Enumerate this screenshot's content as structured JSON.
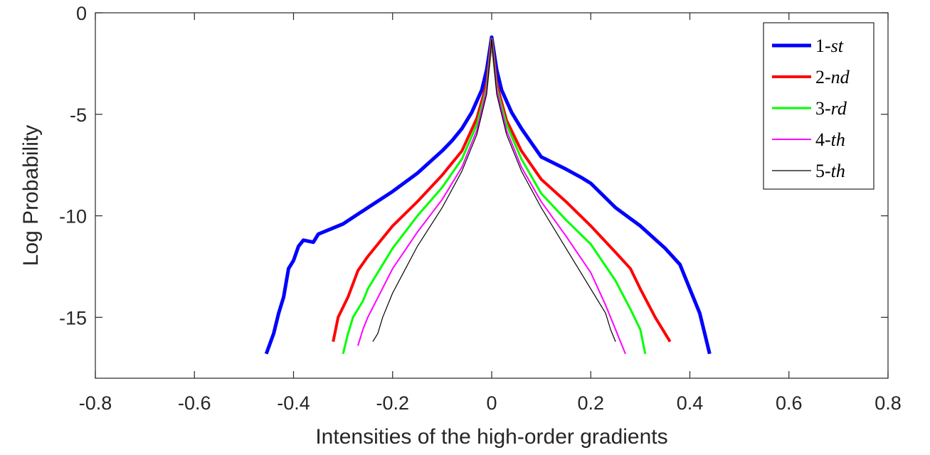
{
  "chart_data": {
    "type": "line",
    "title": "",
    "xlabel": "Intensities of the high-order gradients",
    "ylabel": "Log Probability",
    "xlim": [
      -0.8,
      0.8
    ],
    "ylim": [
      -18,
      0
    ],
    "xticks": [
      -0.8,
      -0.6,
      -0.4,
      -0.2,
      0,
      0.2,
      0.4,
      0.6,
      0.8
    ],
    "xtick_labels": [
      "-0.8",
      "-0.6",
      "-0.4",
      "-0.2",
      "0",
      "0.2",
      "0.4",
      "0.6",
      "0.8"
    ],
    "yticks": [
      0,
      -5,
      -10,
      -15
    ],
    "ytick_labels": [
      "0",
      "-5",
      "-10",
      "-15"
    ],
    "grid": false,
    "legend_position": "top-right",
    "series": [
      {
        "name": "1-st",
        "legend_num": "1-",
        "legend_suffix": "st",
        "color": "#0000ff",
        "width": 5,
        "x": [
          -0.455,
          -0.44,
          -0.43,
          -0.42,
          -0.41,
          -0.4,
          -0.39,
          -0.38,
          -0.36,
          -0.35,
          -0.34,
          -0.3,
          -0.25,
          -0.2,
          -0.15,
          -0.1,
          -0.08,
          -0.06,
          -0.04,
          -0.02,
          -0.01,
          0.0,
          0.01,
          0.02,
          0.04,
          0.06,
          0.08,
          0.1,
          0.15,
          0.18,
          0.2,
          0.25,
          0.3,
          0.35,
          0.38,
          0.4,
          0.42,
          0.43,
          0.44
        ],
        "y": [
          -16.8,
          -15.8,
          -14.8,
          -14.0,
          -12.6,
          -12.2,
          -11.5,
          -11.2,
          -11.3,
          -10.9,
          -10.8,
          -10.4,
          -9.6,
          -8.8,
          -7.9,
          -6.8,
          -6.3,
          -5.7,
          -4.9,
          -3.8,
          -2.8,
          -1.2,
          -2.8,
          -3.8,
          -4.9,
          -5.7,
          -6.4,
          -7.1,
          -7.7,
          -8.1,
          -8.4,
          -9.6,
          -10.5,
          -11.6,
          -12.4,
          -13.6,
          -14.8,
          -15.8,
          -16.8
        ]
      },
      {
        "name": "2-nd",
        "legend_num": "2-",
        "legend_suffix": "nd",
        "color": "#ff0000",
        "width": 4,
        "x": [
          -0.32,
          -0.31,
          -0.3,
          -0.29,
          -0.27,
          -0.25,
          -0.2,
          -0.15,
          -0.1,
          -0.06,
          -0.03,
          -0.01,
          0.0,
          0.01,
          0.03,
          0.06,
          0.1,
          0.15,
          0.2,
          0.25,
          0.28,
          0.3,
          0.33,
          0.36
        ],
        "y": [
          -16.2,
          -15.0,
          -14.5,
          -14.0,
          -12.7,
          -12.0,
          -10.5,
          -9.3,
          -8.0,
          -6.8,
          -5.2,
          -3.5,
          -1.3,
          -3.5,
          -5.3,
          -6.8,
          -8.2,
          -9.3,
          -10.5,
          -11.8,
          -12.6,
          -13.6,
          -15.0,
          -16.2
        ]
      },
      {
        "name": "3-rd",
        "legend_num": "3-",
        "legend_suffix": "rd",
        "color": "#00ff00",
        "width": 3,
        "x": [
          -0.3,
          -0.29,
          -0.28,
          -0.26,
          -0.25,
          -0.2,
          -0.15,
          -0.1,
          -0.06,
          -0.03,
          -0.01,
          0.0,
          0.01,
          0.03,
          0.06,
          0.1,
          0.15,
          0.2,
          0.25,
          0.28,
          0.3,
          0.31
        ],
        "y": [
          -16.8,
          -15.8,
          -15.0,
          -14.2,
          -13.6,
          -11.6,
          -10.0,
          -8.6,
          -7.2,
          -5.5,
          -3.7,
          -1.3,
          -3.7,
          -5.5,
          -7.2,
          -8.9,
          -10.2,
          -11.4,
          -13.2,
          -14.6,
          -15.6,
          -16.8
        ]
      },
      {
        "name": "4-th",
        "legend_num": "4-",
        "legend_suffix": "th",
        "color": "#ff00ff",
        "width": 2,
        "x": [
          -0.27,
          -0.26,
          -0.25,
          -0.2,
          -0.15,
          -0.1,
          -0.06,
          -0.03,
          -0.01,
          0.0,
          0.01,
          0.03,
          0.06,
          0.1,
          0.15,
          0.2,
          0.23,
          0.25,
          0.26,
          0.27
        ],
        "y": [
          -16.4,
          -15.6,
          -15.0,
          -12.6,
          -10.8,
          -9.2,
          -7.6,
          -5.8,
          -3.8,
          -1.3,
          -3.8,
          -5.8,
          -7.6,
          -9.3,
          -11.0,
          -12.8,
          -14.4,
          -15.6,
          -16.2,
          -16.8
        ]
      },
      {
        "name": "5-th",
        "legend_num": "5-",
        "legend_suffix": "th",
        "color": "#000000",
        "width": 1.2,
        "x": [
          -0.24,
          -0.23,
          -0.22,
          -0.2,
          -0.15,
          -0.1,
          -0.06,
          -0.03,
          -0.01,
          0.0,
          0.01,
          0.03,
          0.06,
          0.1,
          0.15,
          0.2,
          0.23,
          0.24,
          0.25
        ],
        "y": [
          -16.2,
          -15.8,
          -15.0,
          -13.8,
          -11.5,
          -9.6,
          -7.8,
          -6.0,
          -4.0,
          -1.3,
          -4.0,
          -6.0,
          -7.8,
          -9.6,
          -11.6,
          -13.6,
          -14.8,
          -15.6,
          -16.2
        ]
      }
    ]
  }
}
